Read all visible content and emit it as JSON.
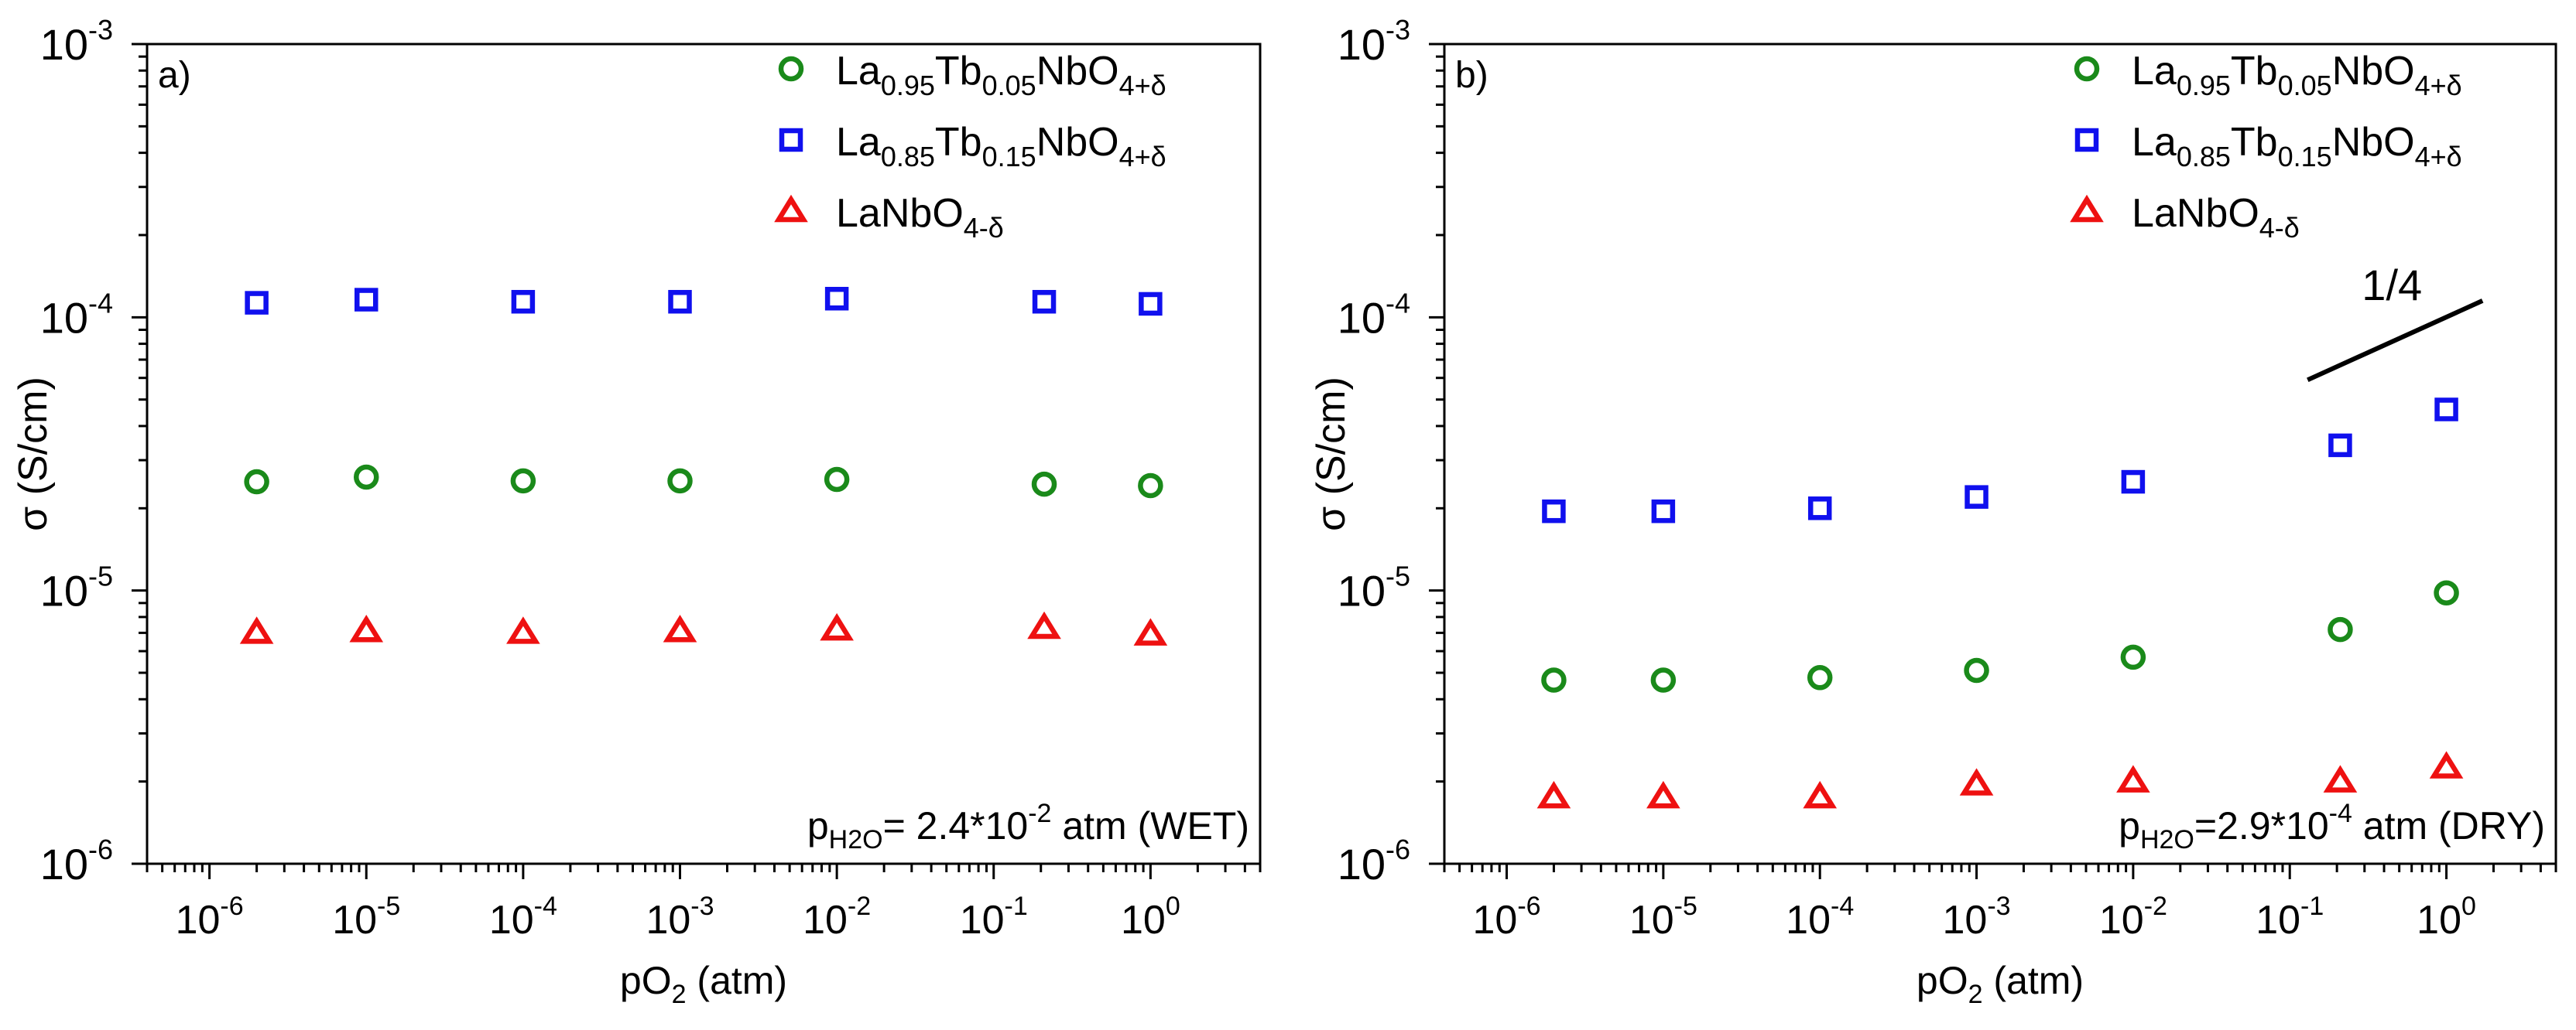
{
  "chart_data": [
    {
      "type": "scatter",
      "panel_label": "a)",
      "xlabel": {
        "base": "pO",
        "sub": "2",
        "rest": " (atm)"
      },
      "ylabel": "σ (S/cm)",
      "xscale": "log",
      "yscale": "log",
      "xlim": [
        4e-07,
        5
      ],
      "ylim": [
        1e-06,
        0.001
      ],
      "xtick_exponents": [
        -6,
        -5,
        -4,
        -3,
        -2,
        -1,
        0
      ],
      "ytick_exponents": [
        -6,
        -5,
        -4,
        -3
      ],
      "annotation": {
        "p": "p",
        "sub": "H2O",
        "mid": "= 2.4*10",
        "sup": "-2",
        "tail": " atm (WET)"
      },
      "legend_position": "top-right",
      "x": [
        2e-06,
        1e-05,
        0.0001,
        0.001,
        0.01,
        0.21,
        1
      ],
      "series": [
        {
          "name": "La0.95Tb0.05NbO4+δ",
          "label_parts": [
            "La",
            "0.95",
            "Tb",
            "0.05",
            "NbO",
            "4+δ"
          ],
          "marker": "circle",
          "color": "#1a8a1a",
          "values": [
            2.5e-05,
            2.6e-05,
            2.52e-05,
            2.52e-05,
            2.55e-05,
            2.45e-05,
            2.42e-05
          ]
        },
        {
          "name": "La0.85Tb0.15NbO4+δ",
          "label_parts": [
            "La",
            "0.85",
            "Tb",
            "0.15",
            "NbO",
            "4+δ"
          ],
          "marker": "square",
          "color": "#1010ee",
          "values": [
            0.000113,
            0.000116,
            0.000114,
            0.000114,
            0.000117,
            0.000114,
            0.000112
          ]
        },
        {
          "name": "LaNbO4-δ",
          "label_parts": [
            "LaNbO",
            "4-δ"
          ],
          "marker": "triangle",
          "color": "#ee1111",
          "values": [
            7e-06,
            7.1e-06,
            7e-06,
            7.1e-06,
            7.2e-06,
            7.3e-06,
            6.9e-06
          ]
        }
      ]
    },
    {
      "type": "scatter",
      "panel_label": "b)",
      "xlabel": {
        "base": "pO",
        "sub": "2",
        "rest": " (atm)"
      },
      "ylabel": "σ (S/cm)",
      "xscale": "log",
      "yscale": "log",
      "xlim": [
        4e-07,
        5
      ],
      "ylim": [
        1e-06,
        0.001
      ],
      "xtick_exponents": [
        -6,
        -5,
        -4,
        -3,
        -2,
        -1,
        0
      ],
      "ytick_exponents": [
        -6,
        -5,
        -4,
        -3
      ],
      "annotation": {
        "p": "p",
        "sub": "H2O",
        "mid": "=2.9*10",
        "sup": "-4",
        "tail": " atm (DRY)"
      },
      "legend_position": "top-right",
      "slope_line": {
        "label": "1/4",
        "x": [
          0.13,
          1.7
        ],
        "y": [
          5.9e-05,
          0.000115
        ]
      },
      "x": [
        2e-06,
        1e-05,
        0.0001,
        0.001,
        0.01,
        0.21,
        1
      ],
      "series": [
        {
          "name": "La0.95Tb0.05NbO4+δ",
          "label_parts": [
            "La",
            "0.95",
            "Tb",
            "0.05",
            "NbO",
            "4+δ"
          ],
          "marker": "circle",
          "color": "#1a8a1a",
          "values": [
            4.7e-06,
            4.7e-06,
            4.8e-06,
            5.1e-06,
            5.7e-06,
            7.2e-06,
            9.8e-06
          ]
        },
        {
          "name": "La0.85Tb0.15NbO4+δ",
          "label_parts": [
            "La",
            "0.85",
            "Tb",
            "0.15",
            "NbO",
            "4+δ"
          ],
          "marker": "square",
          "color": "#1010ee",
          "values": [
            1.95e-05,
            1.95e-05,
            2e-05,
            2.2e-05,
            2.5e-05,
            3.4e-05,
            4.6e-05
          ]
        },
        {
          "name": "LaNbO4-δ",
          "label_parts": [
            "LaNbO",
            "4-δ"
          ],
          "marker": "triangle",
          "color": "#ee1111",
          "values": [
            1.75e-06,
            1.75e-06,
            1.75e-06,
            1.95e-06,
            2e-06,
            2e-06,
            2.25e-06
          ]
        }
      ]
    }
  ]
}
